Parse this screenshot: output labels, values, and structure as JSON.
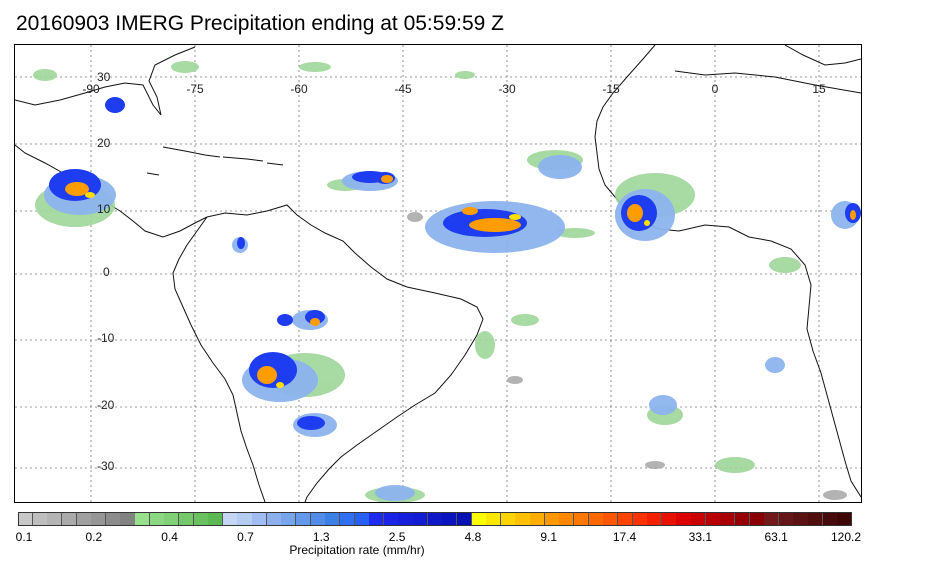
{
  "title": "20160903 IMERG Precipitation ending at 05:59:59 Z",
  "map": {
    "longitude_labels": [
      "-90",
      "-75",
      "-60",
      "-45",
      "-30",
      "-15",
      "0",
      "15"
    ],
    "latitude_labels": [
      "30",
      "20",
      "10",
      "0",
      "-10",
      "-20",
      "-30"
    ],
    "grid": "dotted"
  },
  "colorbar": {
    "colors": [
      "#c8c8c8",
      "#bebebe",
      "#b4b4b4",
      "#aaaaaa",
      "#a0a0a0",
      "#969696",
      "#8c8c8c",
      "#828282",
      "#98e08e",
      "#8cd882",
      "#80d076",
      "#74c86a",
      "#68c05e",
      "#5cb852",
      "#c4d6f4",
      "#b4cbf2",
      "#a0bcf0",
      "#8cb0ee",
      "#78a4ec",
      "#6498ea",
      "#508ce8",
      "#3c80e6",
      "#3070f0",
      "#2860f4",
      "#1e2cf0",
      "#1a24e6",
      "#1620dc",
      "#121cd2",
      "#0e18c8",
      "#0a14be",
      "#0610b4",
      "#ffff00",
      "#ffe800",
      "#ffd400",
      "#ffc000",
      "#ffac00",
      "#ff9800",
      "#ff8800",
      "#ff7800",
      "#ff6800",
      "#ff5600",
      "#ff4400",
      "#ff3200",
      "#f42000",
      "#e81000",
      "#dc0000",
      "#c80000",
      "#b80000",
      "#a80000",
      "#980000",
      "#880000",
      "#701a1a",
      "#661616",
      "#5c1212",
      "#520e0e",
      "#480a0a",
      "#3e0606"
    ],
    "labels": [
      "0.1",
      "0.2",
      "0.4",
      "0.7",
      "1.3",
      "2.5",
      "4.8",
      "9.1",
      "17.4",
      "33.1",
      "63.1",
      "120.2"
    ],
    "unit_label": "Precipitation rate (mm/hr)"
  }
}
